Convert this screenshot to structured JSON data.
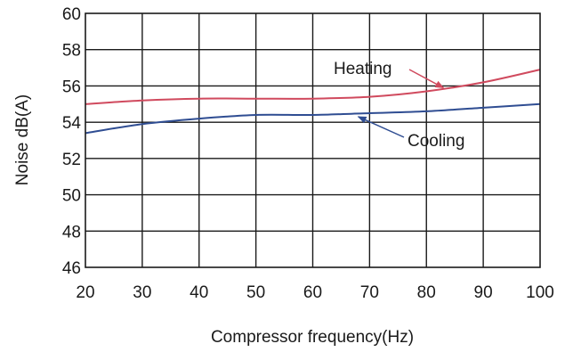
{
  "chart_data": {
    "type": "line",
    "xlabel": "Compressor frequency(Hz)",
    "ylabel": "Noise dB(A)",
    "xlim": [
      20,
      100
    ],
    "ylim": [
      46,
      60
    ],
    "xticks": [
      20,
      30,
      40,
      50,
      60,
      70,
      80,
      90,
      100
    ],
    "yticks": [
      46,
      48,
      50,
      52,
      54,
      56,
      58,
      60
    ],
    "grid": true,
    "x": [
      20,
      30,
      40,
      50,
      60,
      70,
      80,
      90,
      100
    ],
    "series": [
      {
        "name": "Heating",
        "color": "#d04a5e",
        "values": [
          55.0,
          55.2,
          55.3,
          55.3,
          55.3,
          55.4,
          55.7,
          56.2,
          56.9
        ]
      },
      {
        "name": "Cooling",
        "color": "#2f4d92",
        "values": [
          53.4,
          53.9,
          54.2,
          54.4,
          54.4,
          54.5,
          54.6,
          54.8,
          55.0
        ]
      }
    ],
    "annotations": [
      {
        "text": "Heating",
        "series": "Heating",
        "arrow_to": [
          83,
          55.7
        ]
      },
      {
        "text": "Cooling",
        "series": "Cooling",
        "arrow_to": [
          68,
          54.5
        ]
      }
    ]
  }
}
